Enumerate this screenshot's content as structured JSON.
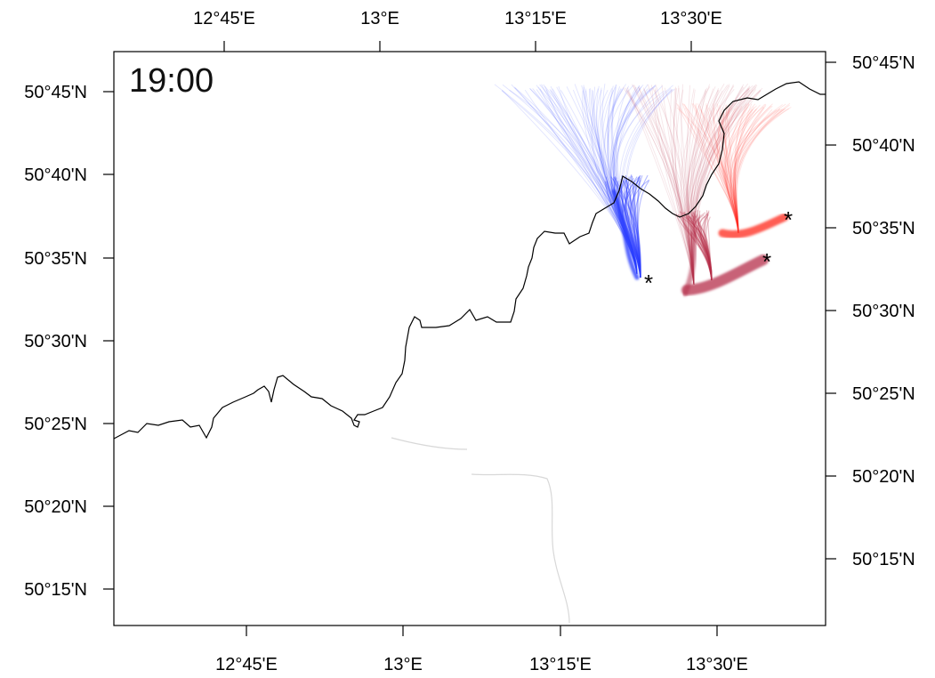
{
  "time_label": "19:00",
  "axes": {
    "top_lon_ticks": [
      "12°45'E",
      "13°E",
      "13°15'E",
      "13°30'E"
    ],
    "bottom_lon_ticks": [
      "12°45'E",
      "13°E",
      "13°15'E",
      "13°30'E"
    ],
    "left_lat_ticks": [
      "50°45'N",
      "50°40'N",
      "50°35'N",
      "50°30'N",
      "50°25'N",
      "50°20'N",
      "50°15'N"
    ],
    "right_lat_ticks": [
      "50°45'N",
      "50°40'N",
      "50°35'N",
      "50°30'N",
      "50°25'N",
      "50°20'N",
      "50°15'N"
    ]
  },
  "colors": {
    "plume_blue": "#2a3dff",
    "plume_red": "#ff2a1e",
    "plume_maroon": "#b52f4a",
    "border": "#000000"
  },
  "source_markers": [
    {
      "name": "source-blue",
      "symbol": "*"
    },
    {
      "name": "source-red",
      "symbol": "*"
    },
    {
      "name": "source-maroon",
      "symbol": "*"
    }
  ]
}
